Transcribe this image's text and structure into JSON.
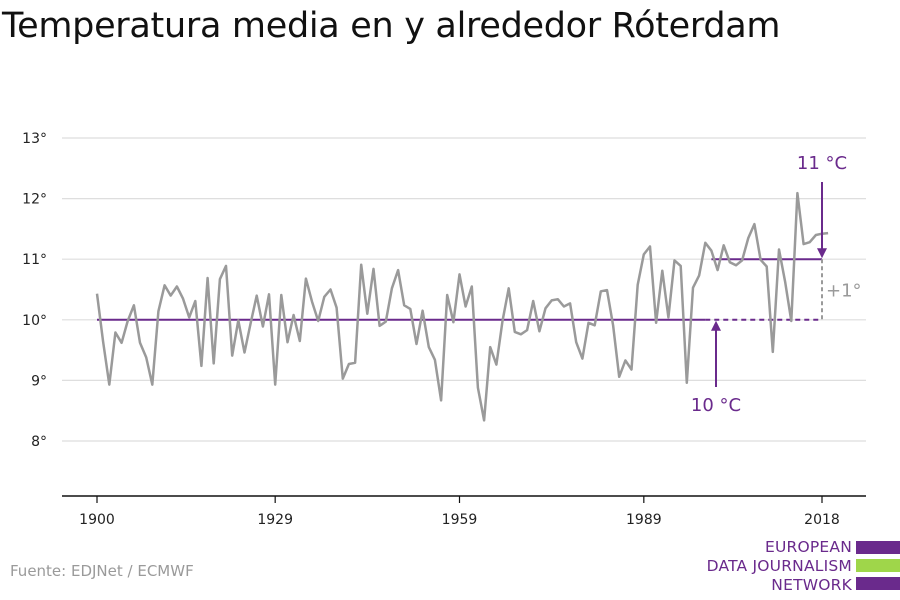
{
  "colors": {
    "series": "#9a9a9a",
    "reference": "#6a2a8c",
    "diff": "#9a9a9a",
    "grid": "#dedede",
    "axis": "#111111",
    "logo_purple": "#6a2a8c",
    "logo_green": "#9fd64a"
  },
  "chart_data": {
    "type": "line",
    "title": "Temperatura media en y alrededor Róterdam",
    "xlabel": "",
    "ylabel": "",
    "xlim": [
      1899,
      2019
    ],
    "ylim": [
      7.05,
      13.15
    ],
    "xticks": [
      1900,
      1929,
      1959,
      1989,
      2018
    ],
    "xtick_labels": [
      "1900",
      "1929",
      "1959",
      "1989",
      "2018"
    ],
    "yticks": [
      8,
      9,
      10,
      11,
      12,
      13
    ],
    "ytick_labels": [
      "8°",
      "9°",
      "10°",
      "11°",
      "12°",
      "13°"
    ],
    "grid": true,
    "series": [
      {
        "x": [
          1900,
          1901,
          1902,
          1903,
          1904,
          1905,
          1906,
          1907,
          1908,
          1909,
          1910,
          1911,
          1912,
          1913,
          1914,
          1915,
          1916,
          1917,
          1918,
          1919,
          1920,
          1921,
          1922,
          1923,
          1924,
          1925,
          1926,
          1927,
          1928,
          1929,
          1930,
          1931,
          1932,
          1933,
          1934,
          1935,
          1936,
          1937,
          1938,
          1939,
          1940,
          1941,
          1942,
          1943,
          1944,
          1945,
          1946,
          1947,
          1948,
          1949,
          1950,
          1951,
          1952,
          1953,
          1954,
          1955,
          1956,
          1957,
          1958,
          1959,
          1960,
          1961,
          1962,
          1963,
          1964,
          1965,
          1966,
          1967,
          1968,
          1969,
          1970,
          1971,
          1972,
          1973,
          1974,
          1975,
          1976,
          1977,
          1978,
          1979,
          1980,
          1981,
          1982,
          1983,
          1984,
          1985,
          1986,
          1987,
          1988,
          1989,
          1990,
          1991,
          1992,
          1993,
          1994,
          1995,
          1996,
          1997,
          1998,
          1999,
          2000,
          2001,
          2002,
          2003,
          2004,
          2005,
          2006,
          2007,
          2008,
          2009,
          2010,
          2011,
          2012,
          2013,
          2014,
          2015,
          2016,
          2017,
          2018,
          2019
        ],
        "values": [
          10.43,
          9.64,
          8.93,
          9.79,
          9.62,
          9.98,
          10.24,
          9.62,
          9.38,
          8.93,
          10.14,
          10.57,
          10.4,
          10.55,
          10.35,
          10.04,
          10.31,
          9.24,
          10.69,
          9.28,
          10.67,
          10.89,
          9.41,
          9.99,
          9.46,
          9.94,
          10.4,
          9.89,
          10.42,
          8.93,
          10.41,
          9.63,
          10.08,
          9.65,
          10.68,
          10.3,
          9.98,
          10.38,
          10.5,
          10.2,
          9.03,
          9.27,
          9.29,
          10.91,
          10.1,
          10.84,
          9.9,
          9.97,
          10.52,
          10.82,
          10.24,
          10.18,
          9.6,
          10.15,
          9.55,
          9.34,
          8.67,
          10.41,
          9.96,
          10.75,
          10.22,
          10.55,
          8.88,
          8.34,
          9.55,
          9.26,
          9.98,
          10.52,
          9.8,
          9.76,
          9.83,
          10.31,
          9.81,
          10.19,
          10.32,
          10.34,
          10.22,
          10.27,
          9.63,
          9.36,
          9.95,
          9.91,
          10.47,
          10.49,
          9.91,
          9.06,
          9.33,
          9.18,
          10.58,
          11.08,
          11.21,
          9.95,
          10.81,
          10.04,
          10.98,
          10.89,
          8.96,
          10.53,
          10.73,
          11.27,
          11.14,
          10.82,
          11.23,
          10.95,
          10.9,
          10.98,
          11.35,
          11.58,
          10.99,
          10.88,
          9.47,
          11.16,
          10.63,
          9.98,
          12.09,
          11.25,
          11.28,
          11.4,
          11.42,
          11.43
        ]
      }
    ],
    "reference_lines": [
      {
        "label": "10 °C",
        "value": 10,
        "solid_from": 1900,
        "solid_to": 1999,
        "dashed_to": 2018
      },
      {
        "label": "11 °C",
        "value": 11,
        "solid_from": 2000,
        "solid_to": 2018
      }
    ],
    "difference_label": "+1°"
  },
  "footer": {
    "source": "Fuente: EDJNet / ECMWF",
    "logo_lines": [
      "EUROPEAN",
      "DATA JOURNALISM",
      "NETWORK"
    ]
  }
}
